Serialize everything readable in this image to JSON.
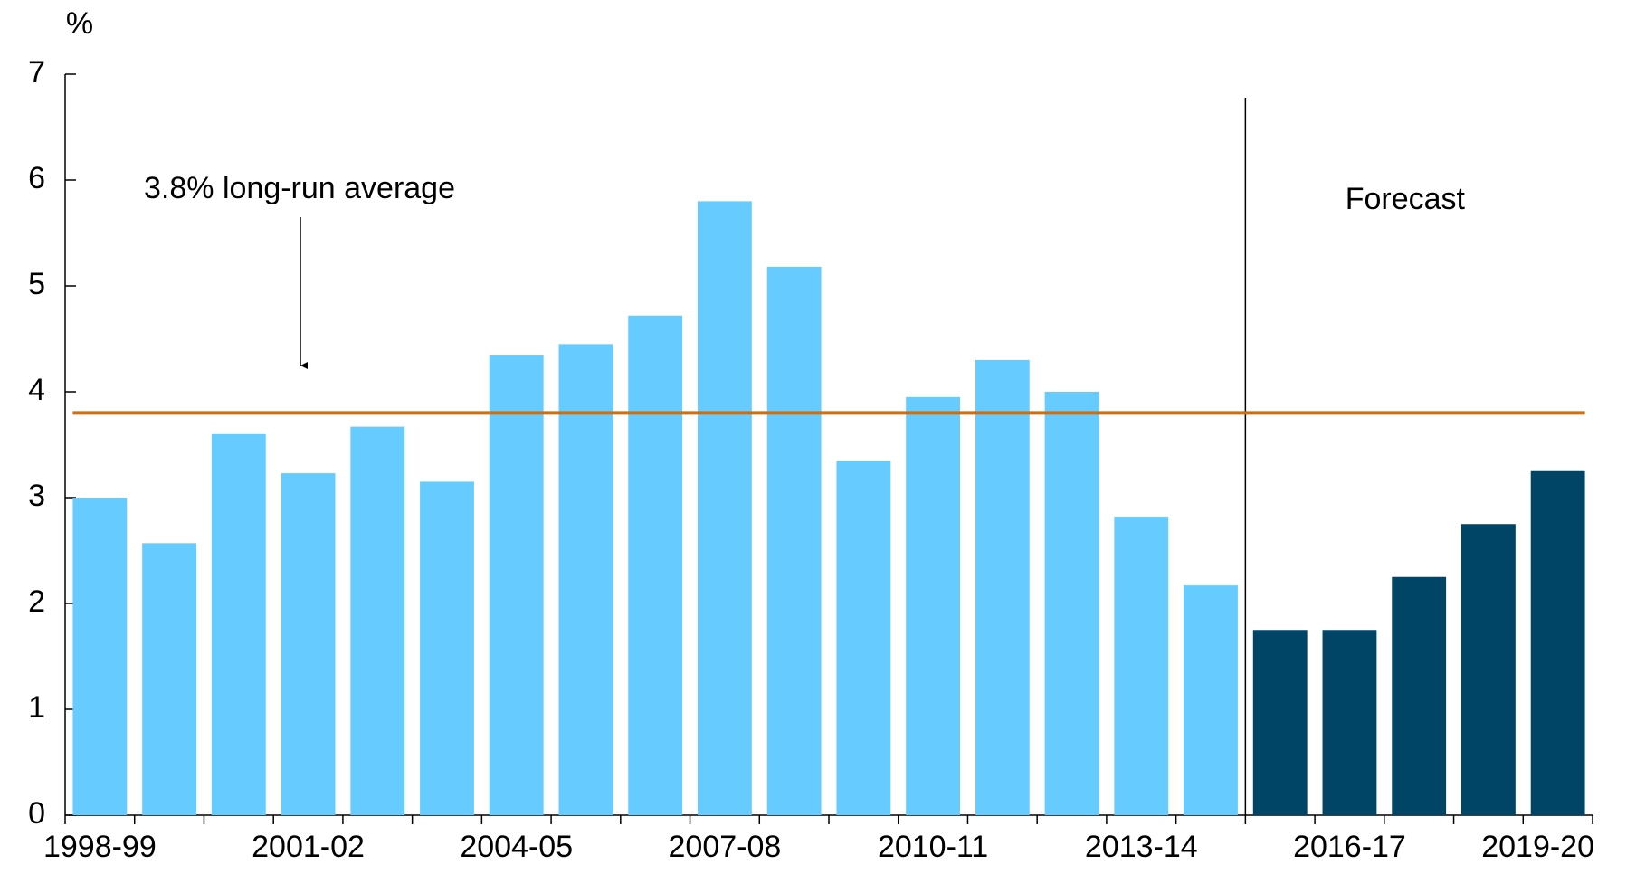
{
  "chart_data": {
    "type": "bar",
    "y_axis_label": "%",
    "categories": [
      "1998-99",
      null,
      null,
      "2001-02",
      null,
      null,
      "2004-05",
      null,
      null,
      "2007-08",
      null,
      null,
      "2010-11",
      null,
      null,
      "2013-14",
      null,
      null,
      "2016-17",
      null,
      null,
      "2019-20"
    ],
    "values": [
      3.0,
      2.57,
      3.6,
      3.23,
      3.67,
      3.15,
      4.35,
      4.45,
      4.72,
      5.8,
      5.18,
      3.35,
      3.95,
      4.3,
      4.0,
      2.82,
      2.17,
      1.75,
      1.75,
      2.25,
      2.75,
      3.25
    ],
    "colors": [
      "#66ccff",
      "#66ccff",
      "#66ccff",
      "#66ccff",
      "#66ccff",
      "#66ccff",
      "#66ccff",
      "#66ccff",
      "#66ccff",
      "#66ccff",
      "#66ccff",
      "#66ccff",
      "#66ccff",
      "#66ccff",
      "#66ccff",
      "#66ccff",
      "#66ccff",
      "#004466",
      "#004466",
      "#004466",
      "#004466",
      "#004466"
    ],
    "average": {
      "value": 3.8,
      "label": "3.8% long-run average",
      "color": "#cc6f14"
    },
    "forecast_label": "Forecast",
    "ylim": [
      0,
      7
    ],
    "yticks": [
      0,
      1,
      2,
      3,
      4,
      5,
      6,
      7
    ],
    "grid": false
  }
}
